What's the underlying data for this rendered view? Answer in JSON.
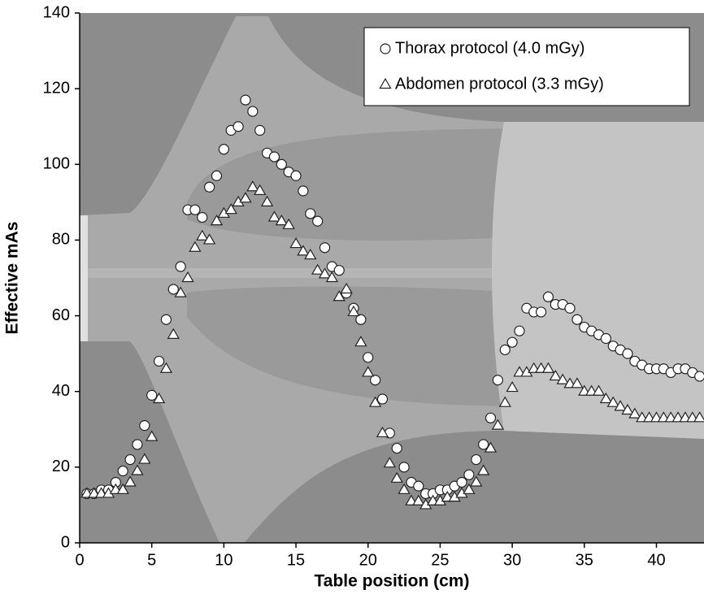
{
  "chart_data": {
    "type": "scatter",
    "x_label": "Table position (cm)",
    "y_label": "Effective mAs",
    "x": [
      0.5,
      1,
      1.5,
      2,
      2.5,
      3,
      3.5,
      4,
      4.5,
      5,
      5.5,
      6,
      6.5,
      7,
      7.5,
      8,
      8.5,
      9,
      9.5,
      10,
      10.5,
      11,
      11.5,
      12,
      12.5,
      13,
      13.5,
      14,
      14.5,
      15,
      15.5,
      16,
      16.5,
      17,
      17.5,
      18,
      18.5,
      19,
      19.5,
      20,
      20.5,
      21,
      21.5,
      22,
      22.5,
      23,
      23.5,
      24,
      24.5,
      25,
      25.5,
      26,
      26.5,
      27,
      27.5,
      28,
      28.5,
      29,
      29.5,
      30,
      30.5,
      31,
      31.5,
      32,
      32.5,
      33,
      33.5,
      34,
      34.5,
      35,
      35.5,
      36,
      36.5,
      37,
      37.5,
      38,
      38.5,
      39,
      39.5,
      40,
      40.5,
      41,
      41.5,
      42,
      42.5,
      43
    ],
    "series": [
      {
        "name": "Thorax protocol (4.0 mGy)",
        "marker": "circle",
        "color": "#ffffff",
        "values": [
          13,
          13,
          14,
          14,
          16,
          19,
          22,
          26,
          31,
          39,
          48,
          59,
          67,
          73,
          88,
          88,
          86,
          94,
          97,
          104,
          109,
          110,
          117,
          114,
          109,
          103,
          102,
          100,
          98,
          97,
          93,
          87,
          85,
          78,
          73,
          72,
          66,
          62,
          59,
          49,
          43,
          38,
          29,
          25,
          20,
          16,
          15,
          13,
          13,
          14,
          14,
          15,
          16,
          18,
          22,
          26,
          33,
          43,
          51,
          53,
          56,
          62,
          61,
          61,
          65,
          63,
          63,
          62,
          59,
          57,
          56,
          55,
          54,
          52,
          51,
          50,
          48,
          47,
          46,
          46,
          46,
          45,
          46,
          46,
          45,
          44
        ]
      },
      {
        "name": "Abdomen protocol (3.3 mGy)",
        "marker": "triangle",
        "color": "#ffffff",
        "values": [
          13,
          13,
          13,
          13,
          14,
          14,
          16,
          19,
          22,
          28,
          38,
          46,
          55,
          66,
          70,
          78,
          81,
          80,
          85,
          87,
          88,
          90,
          91,
          94,
          93,
          90,
          86,
          85,
          84,
          79,
          77,
          76,
          72,
          71,
          70,
          65,
          67,
          61,
          53,
          45,
          37,
          29,
          21,
          17,
          14,
          11,
          11,
          10,
          11,
          11,
          12,
          12,
          13,
          14,
          16,
          19,
          25,
          31,
          37,
          41,
          45,
          45,
          46,
          46,
          46,
          44,
          43,
          42,
          42,
          40,
          40,
          40,
          38,
          37,
          36,
          35,
          34,
          33,
          33,
          33,
          33,
          33,
          33,
          33,
          33,
          33
        ]
      }
    ],
    "xlim": [
      0,
      43.3
    ],
    "ylim": [
      0,
      140
    ],
    "xticks": [
      0,
      5,
      10,
      15,
      20,
      25,
      30,
      35,
      40
    ],
    "yticks": [
      0,
      20,
      40,
      60,
      80,
      100,
      120,
      140
    ],
    "legend": "top-right"
  }
}
